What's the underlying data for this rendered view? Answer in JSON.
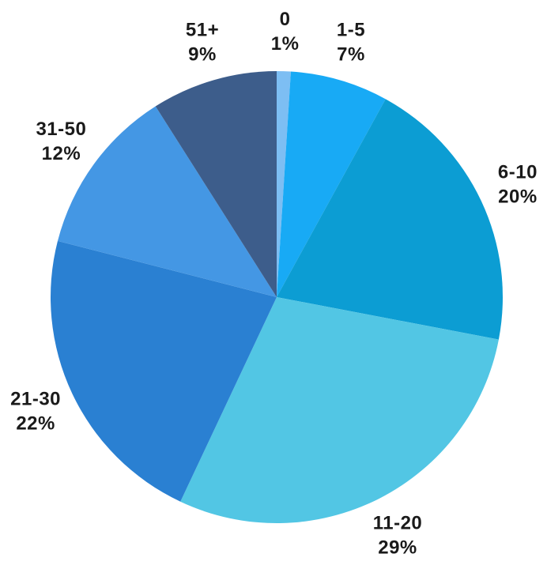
{
  "page": {
    "background_color": "#ffffff"
  },
  "chart_data": {
    "type": "pie",
    "title": "",
    "unit": "%",
    "categories": [
      "0",
      "1-5",
      "6-10",
      "11-20",
      "21-30",
      "31-50",
      "51+"
    ],
    "values": [
      1,
      7,
      20,
      29,
      22,
      12,
      9
    ],
    "percent_labels": [
      "1%",
      "7%",
      "20%",
      "29%",
      "22%",
      "12%",
      "9%"
    ],
    "colors": [
      "#7dbef3",
      "#18aaf5",
      "#0c9dd3",
      "#52c6e4",
      "#2a80d2",
      "#4497e4",
      "#3d5d8b"
    ],
    "start_angle_deg": 0,
    "direction": "clockwise",
    "legend": "none",
    "labels_position": "outside",
    "label_color": "#1a1a1a"
  }
}
